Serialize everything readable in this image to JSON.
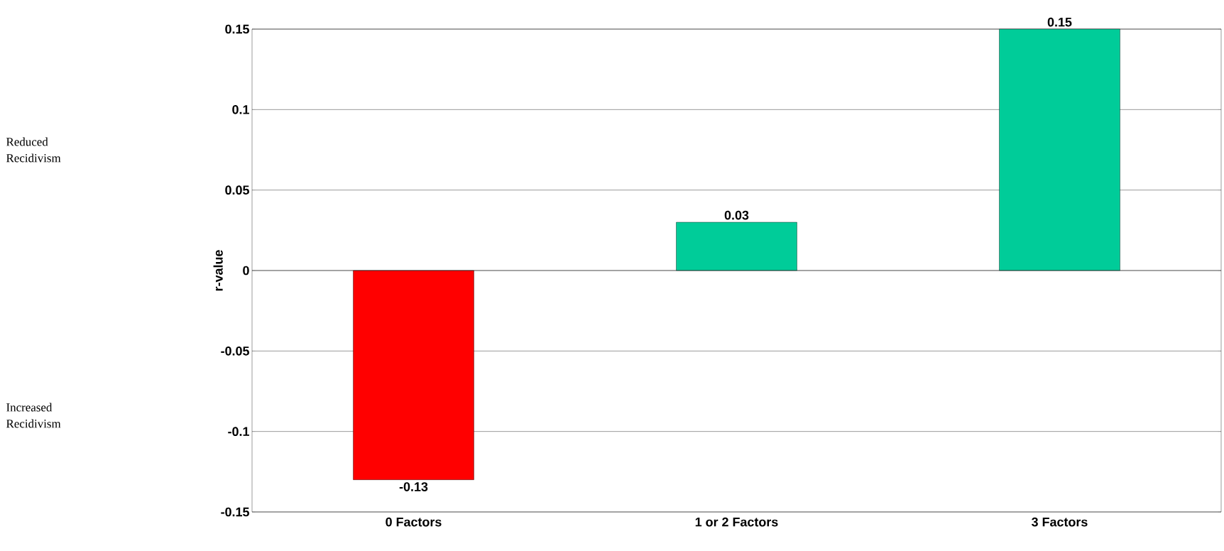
{
  "chart_data": {
    "type": "bar",
    "ylabel": "r-value",
    "categories": [
      "0 Factors",
      "1 or 2 Factors",
      "3 Factors"
    ],
    "values": [
      -0.13,
      0.03,
      0.15
    ],
    "colors": [
      "#ff0000",
      "#00cc99",
      "#00cc99"
    ],
    "ylim": [
      -0.15,
      0.15
    ],
    "yticks": [
      -0.15,
      -0.1,
      -0.05,
      0,
      0.05,
      0.1,
      0.15
    ],
    "grid": "y",
    "data_labels": true,
    "annotations": [
      "Reduced Recidivism",
      "Increased Recidivism"
    ]
  }
}
